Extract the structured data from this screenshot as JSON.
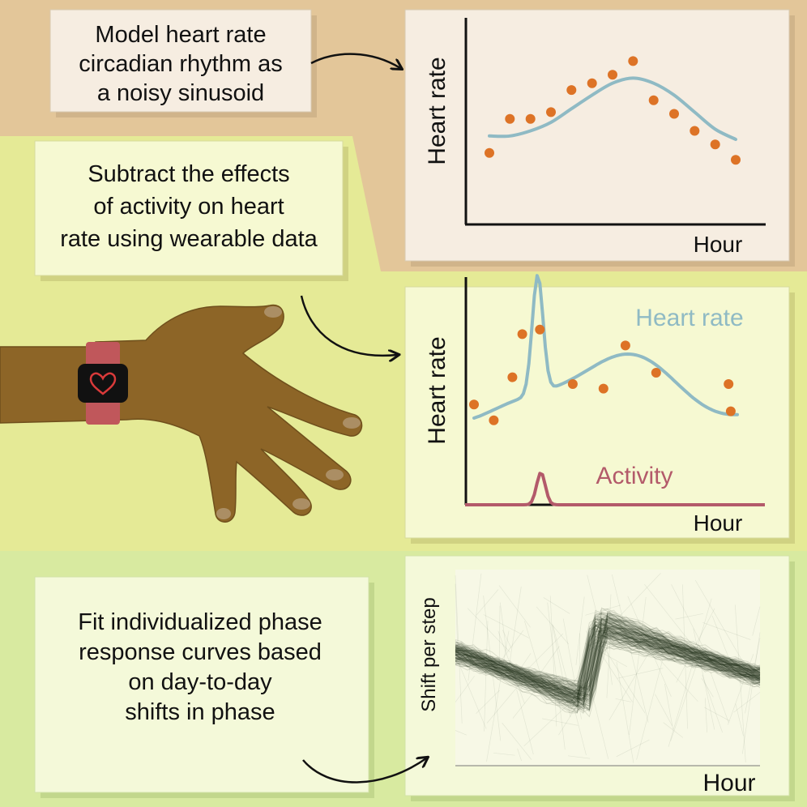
{
  "panels": {
    "step1": {
      "text_lines": [
        "Model heart rate",
        "circadian rhythm as",
        "a noisy sinusoid"
      ]
    },
    "step2": {
      "text_lines": [
        "Subtract the effects",
        "of activity on heart",
        "rate using wearable data"
      ]
    },
    "step3": {
      "text_lines": [
        "Fit individualized phase",
        "response curves based",
        "on day-to-day",
        "shifts  in phase"
      ]
    }
  },
  "charts": {
    "chart1": {
      "ylabel": "Heart rate",
      "xlabel": "Hour"
    },
    "chart2": {
      "ylabel": "Heart rate",
      "xlabel": "Hour",
      "heart_rate_label": "Heart rate",
      "activity_label": "Activity"
    },
    "chart3": {
      "ylabel": "Shift per step",
      "xlabel": "Hour"
    }
  },
  "colors": {
    "beige_band": "#e3c699",
    "yellow_band": "#e5ea96",
    "green_band": "#d8eaa0",
    "card_beige": "#f6ede1",
    "card_yellow": "#f6f9d2",
    "heart_rate_curve": "#8fbac4",
    "data_points": "#dd7326",
    "activity_curve": "#b35a6a",
    "skin": "#8d6527",
    "watch_strap": "#c0575b"
  },
  "icons": [
    "hand-illustration",
    "smartwatch-icon",
    "heart-icon",
    "arrow-icon"
  ],
  "chart_data": [
    {
      "type": "scatter",
      "title": "",
      "xlabel": "Hour",
      "ylabel": "Heart rate",
      "x": [
        1,
        2,
        3,
        4,
        5,
        6,
        7,
        8,
        9,
        10,
        11,
        12,
        13
      ],
      "series": [
        {
          "values": [
            4.2,
            6.2,
            6.2,
            6.6,
            7.9,
            8.3,
            8.8,
            9.6,
            7.3,
            6.5,
            5.5,
            4.7,
            3.8
          ]
        },
        {
          "values": [
            5.2,
            5.2,
            5.5,
            6.0,
            6.8,
            7.6,
            8.3,
            8.6,
            8.3,
            7.6,
            6.6,
            5.6,
            5.0
          ]
        }
      ]
    },
    {
      "type": "line",
      "title": "",
      "xlabel": "Hour",
      "ylabel": "Heart rate",
      "x": [
        1,
        2,
        3,
        4,
        5,
        6,
        7,
        8,
        9,
        10,
        11,
        12,
        13
      ],
      "series": [
        {
          "name": "Heart rate",
          "values": [
            4.0,
            3.5,
            4.5,
            8.6,
            5.0,
            4.6,
            5.4,
            6.4,
            7.1,
            6.6,
            5.6,
            4.8,
            3.9
          ]
        },
        {
          "name": "Activity",
          "values": [
            0,
            0,
            0,
            1.6,
            0,
            0,
            0,
            0,
            0,
            0,
            0,
            0,
            0
          ]
        }
      ]
    },
    {
      "type": "line",
      "title": "",
      "xlabel": "Hour",
      "ylabel": "Shift per step",
      "x": [
        0,
        1,
        2,
        3,
        4,
        5,
        6,
        7,
        8,
        9,
        10,
        11,
        12
      ],
      "series": [
        {
          "values": [
            0.4,
            0.1,
            -0.2,
            -0.5,
            -0.7,
            0.2,
            0.9,
            0.8,
            0.6,
            0.3,
            0.0,
            -0.3,
            -0.5
          ]
        }
      ]
    }
  ]
}
